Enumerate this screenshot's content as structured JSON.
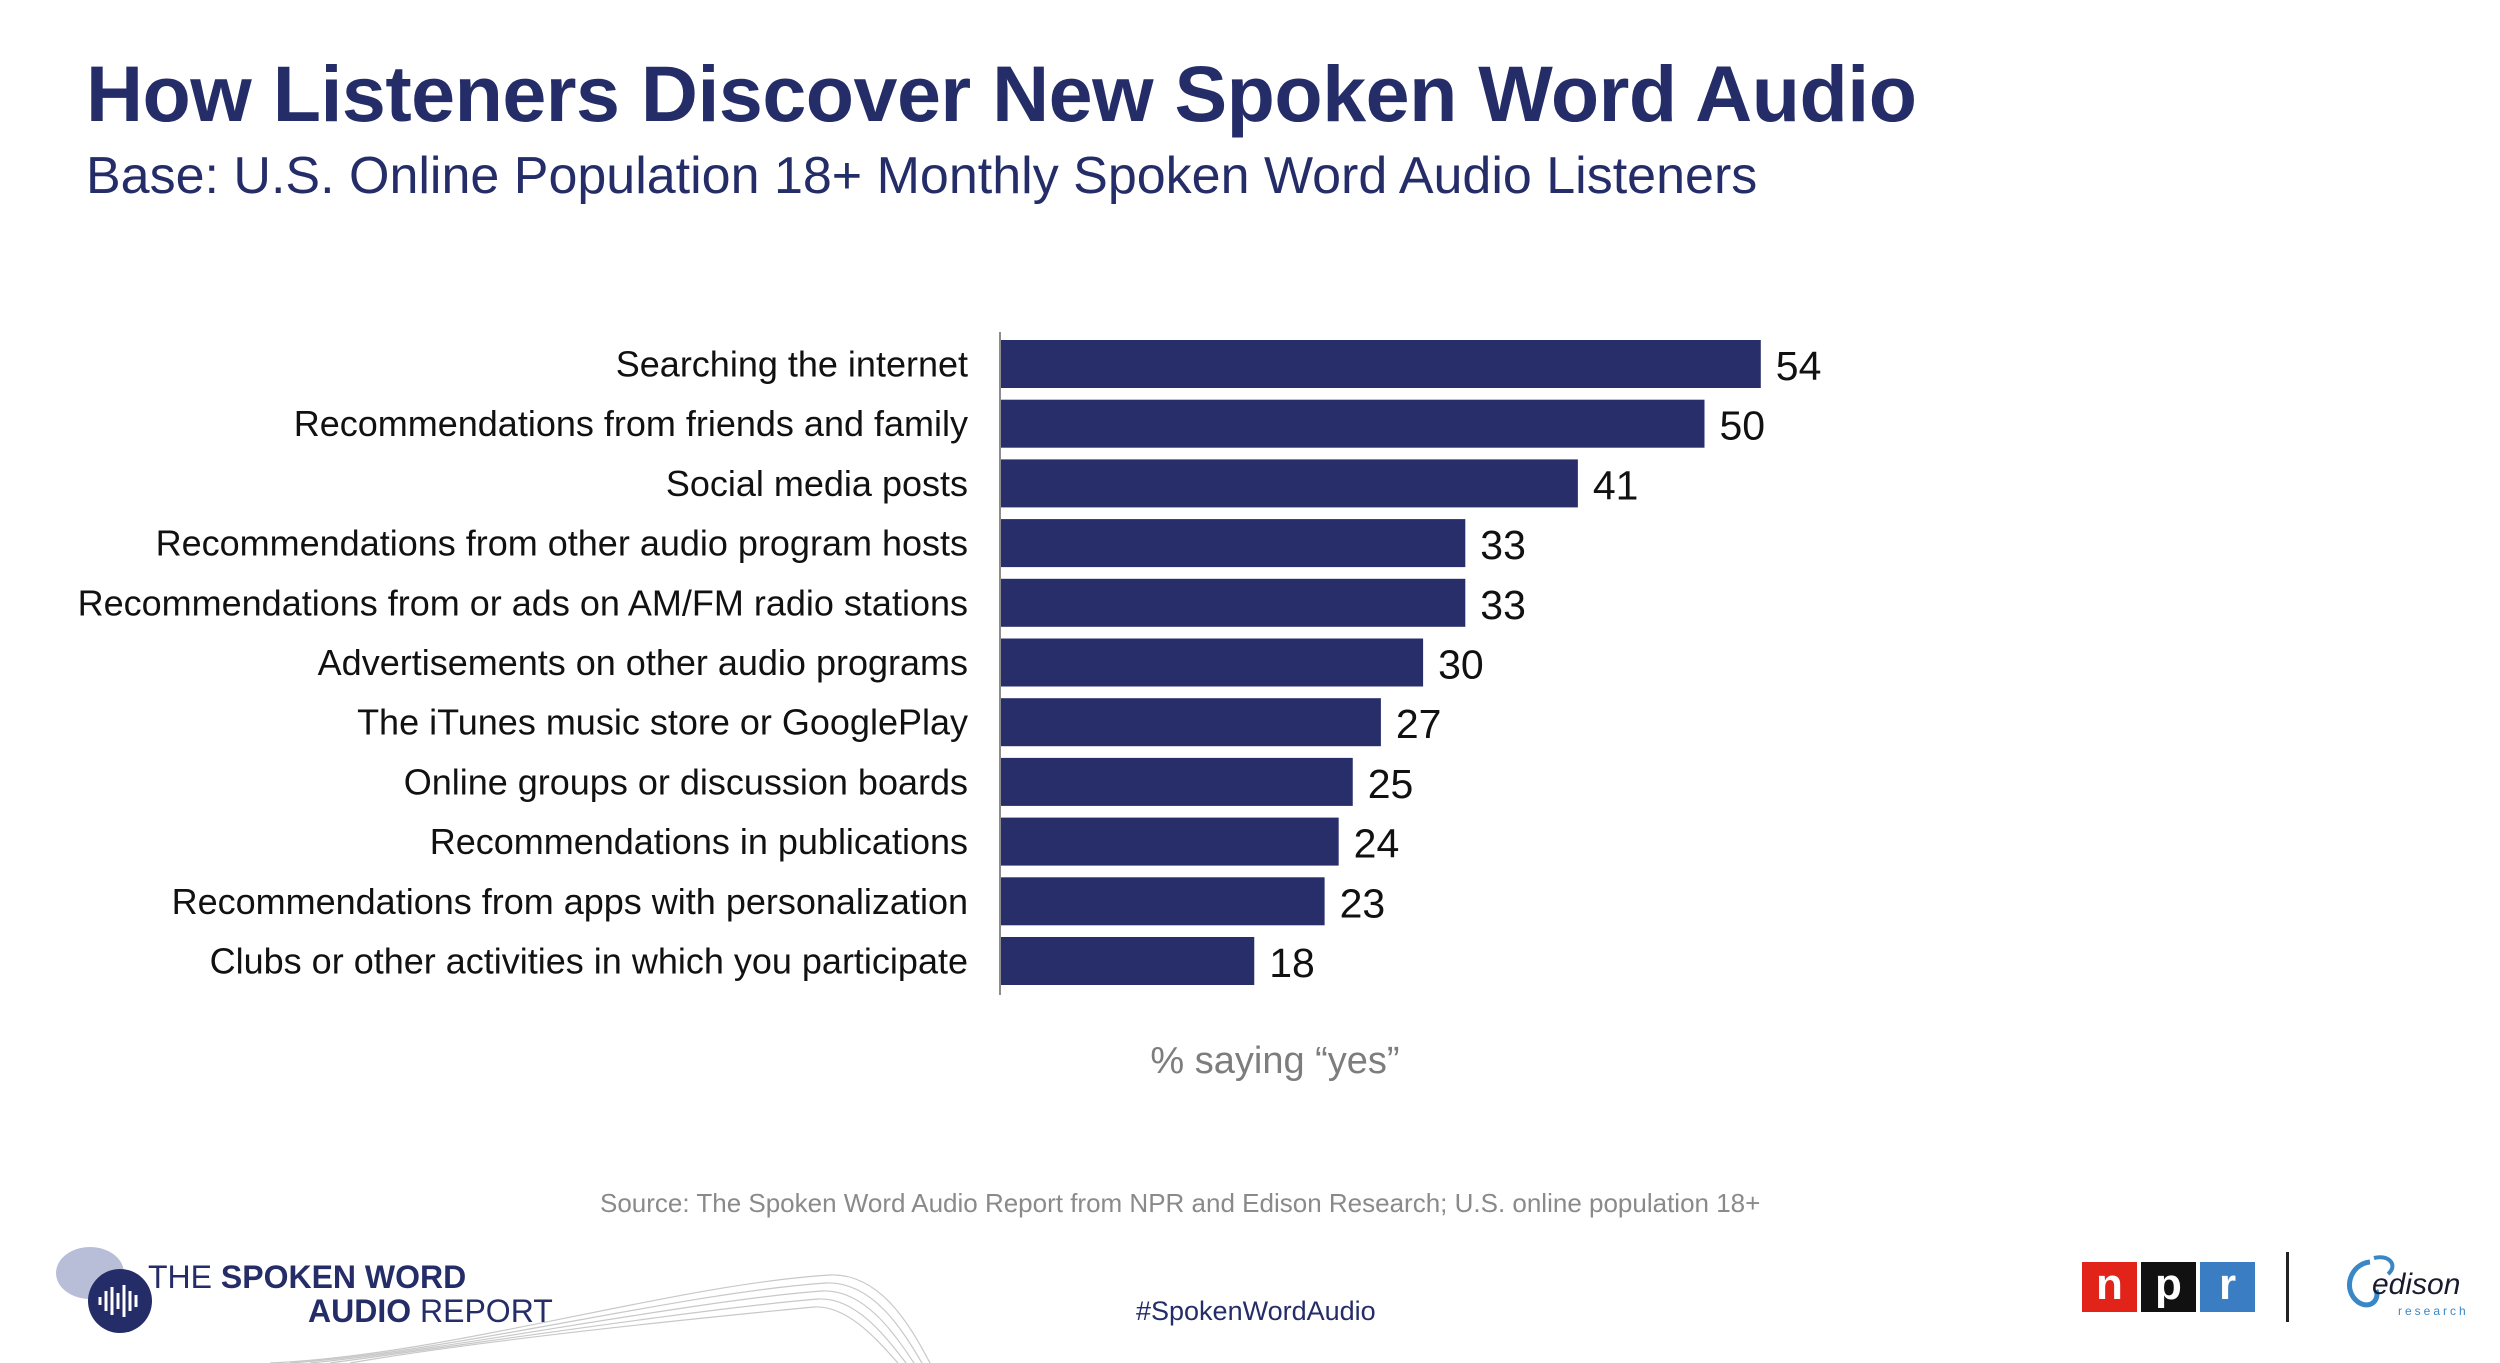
{
  "header": {
    "title": "How Listeners Discover New Spoken Word Audio",
    "subtitle": "Base: U.S. Online Population 18+ Monthly Spoken Word Audio Listeners"
  },
  "chart_data": {
    "type": "bar",
    "orientation": "horizontal",
    "categories": [
      "Searching the internet",
      "Recommendations from friends and family",
      "Social media posts",
      "Recommendations from other audio program hosts",
      "Recommendations from or ads on AM/FM radio stations",
      "Advertisements on other audio programs",
      "The iTunes music store or GooglePlay",
      "Online groups or discussion boards",
      "Recommendations in publications",
      "Recommendations from apps with personalization",
      "Clubs or other activities in which you participate"
    ],
    "values": [
      54,
      50,
      41,
      33,
      33,
      30,
      27,
      25,
      24,
      23,
      18
    ],
    "xlabel": "% saying “yes”",
    "xlim": [
      0,
      62
    ],
    "bar_color": "#272e6a",
    "grid": false
  },
  "footer": {
    "source": "Source: The Spoken Word Audio Report from NPR and Edison Research; U.S. online population 18+",
    "hashtag": "#SpokenWordAudio",
    "report_logo": {
      "line1_prefix": "THE ",
      "line1_bold": "SPOKEN WORD",
      "line2_bold": "AUDIO",
      "line2_suffix": " REPORT"
    },
    "npr_logo": {
      "n": "n",
      "p": "p",
      "r": "r"
    },
    "edison_logo": {
      "word": "edison",
      "sub": "research"
    }
  },
  "colors": {
    "title": "#252d68",
    "bar": "#272e6a",
    "npr_red": "#e2231a",
    "npr_black": "#111111",
    "npr_blue": "#3a7dc3"
  }
}
